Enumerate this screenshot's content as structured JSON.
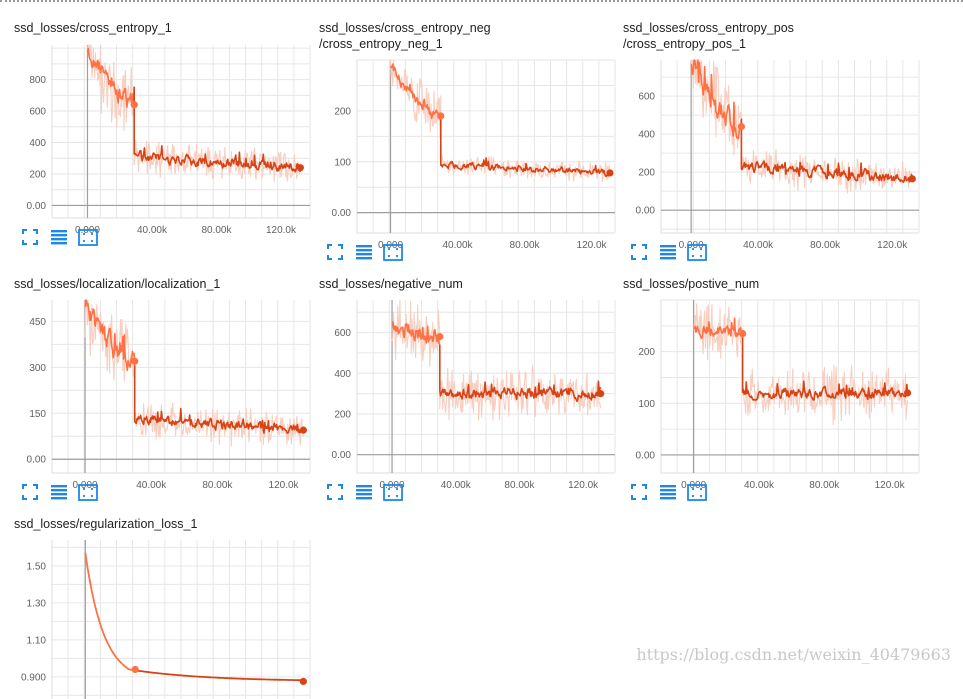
{
  "page": {
    "watermark": "https://blog.csdn.net/weixin_40479663"
  },
  "colors": {
    "raw": "#f7cfc0",
    "smooth_early": "#ff7043",
    "smooth_late": "#d84315",
    "grid": "#e6e6e6",
    "axis": "#9e9e9e",
    "icon": "#1e88e5"
  },
  "icons": [
    "expand-icon",
    "list-icon",
    "fit-domain-icon"
  ],
  "chart_data": [
    {
      "type": "line",
      "title_lines": [
        "ssd_losses/cross_entropy_1"
      ],
      "xlim": [
        -22000,
        138000
      ],
      "ylim": [
        -80,
        1020
      ],
      "x_ticks": [
        0,
        40000,
        80000,
        120000
      ],
      "x_tick_labels": [
        "0.000",
        "40.00k",
        "80.00k",
        "120.0k"
      ],
      "y_ticks": [
        0,
        200,
        400,
        600,
        800
      ],
      "y_tick_labels": [
        "0.00",
        "200",
        "400",
        "600",
        "800"
      ],
      "series": [
        {
          "name": "",
          "segments": [
            {
              "x0": 0,
              "x1": 29000,
              "start": 1000,
              "end": 650,
              "noise": 65,
              "raw_spread": 200
            },
            {
              "x0": 29000,
              "x1": 132000,
              "start": 310,
              "end": 240,
              "noise": 35,
              "raw_spread": 95
            }
          ]
        }
      ],
      "markers": [
        {
          "x": 29000,
          "y": 640
        },
        {
          "x": 132000,
          "y": 240
        }
      ]
    },
    {
      "type": "line",
      "title_lines": [
        "ssd_losses/cross_entropy_neg",
        "/cross_entropy_neg_1"
      ],
      "xlim": [
        -20000,
        134000
      ],
      "ylim": [
        -40,
        300
      ],
      "x_ticks": [
        0,
        40000,
        80000,
        120000
      ],
      "x_tick_labels": [
        "0.000",
        "40.00k",
        "80.00k",
        "120.0k"
      ],
      "y_ticks": [
        0,
        100,
        200
      ],
      "y_tick_labels": [
        "0.00",
        "100",
        "200"
      ],
      "series": [
        {
          "name": "",
          "segments": [
            {
              "x0": 0,
              "x1": 30000,
              "start": 290,
              "end": 190,
              "noise": 12,
              "raw_spread": 40
            },
            {
              "x0": 30000,
              "x1": 131000,
              "start": 95,
              "end": 78,
              "noise": 7,
              "raw_spread": 18
            }
          ]
        }
      ],
      "markers": [
        {
          "x": 30000,
          "y": 190
        },
        {
          "x": 131000,
          "y": 78
        }
      ]
    },
    {
      "type": "line",
      "title_lines": [
        "ssd_losses/cross_entropy_pos",
        "/cross_entropy_pos_1"
      ],
      "xlim": [
        -18000,
        136000
      ],
      "ylim": [
        -120,
        790
      ],
      "x_ticks": [
        0,
        40000,
        80000,
        120000
      ],
      "x_tick_labels": [
        "0.000",
        "40.00k",
        "80.00k",
        "120.0k"
      ],
      "y_ticks": [
        0,
        200,
        400,
        600
      ],
      "y_tick_labels": [
        "0.00",
        "200",
        "400",
        "600"
      ],
      "series": [
        {
          "name": "",
          "segments": [
            {
              "x0": 0,
              "x1": 30000,
              "start": 780,
              "end": 450,
              "noise": 70,
              "raw_spread": 180
            },
            {
              "x0": 30000,
              "x1": 132000,
              "start": 230,
              "end": 165,
              "noise": 30,
              "raw_spread": 80
            }
          ]
        }
      ],
      "markers": [
        {
          "x": 30000,
          "y": 440
        },
        {
          "x": 132000,
          "y": 165
        }
      ]
    },
    {
      "type": "line",
      "title_lines": [
        "ssd_losses/localization/localization_1"
      ],
      "xlim": [
        -20000,
        136000
      ],
      "ylim": [
        -45,
        520
      ],
      "x_ticks": [
        0,
        40000,
        80000,
        120000
      ],
      "x_tick_labels": [
        "0.000",
        "40.00k",
        "80.00k",
        "120.0k"
      ],
      "y_ticks": [
        0,
        150,
        300,
        450
      ],
      "y_tick_labels": [
        "0.00",
        "150",
        "300",
        "450"
      ],
      "series": [
        {
          "name": "",
          "segments": [
            {
              "x0": 0,
              "x1": 30000,
              "start": 500,
              "end": 320,
              "noise": 40,
              "raw_spread": 110
            },
            {
              "x0": 30000,
              "x1": 132000,
              "start": 135,
              "end": 95,
              "noise": 18,
              "raw_spread": 50
            }
          ]
        }
      ],
      "markers": [
        {
          "x": 30000,
          "y": 320
        },
        {
          "x": 132000,
          "y": 95
        }
      ]
    },
    {
      "type": "line",
      "title_lines": [
        "ssd_losses/negative_num"
      ],
      "xlim": [
        -22000,
        140000
      ],
      "ylim": [
        -90,
        760
      ],
      "x_ticks": [
        0,
        40000,
        80000,
        120000
      ],
      "x_tick_labels": [
        "0.000",
        "40.00k",
        "80.00k",
        "120.0k"
      ],
      "y_ticks": [
        0,
        200,
        400,
        600
      ],
      "y_tick_labels": [
        "0.00",
        "200",
        "400",
        "600"
      ],
      "series": [
        {
          "name": "",
          "segments": [
            {
              "x0": 0,
              "x1": 30000,
              "start": 640,
              "end": 580,
              "noise": 45,
              "raw_spread": 150
            },
            {
              "x0": 30000,
              "x1": 131000,
              "start": 300,
              "end": 300,
              "noise": 30,
              "raw_spread": 110
            }
          ]
        }
      ],
      "markers": [
        {
          "x": 30000,
          "y": 580
        },
        {
          "x": 131000,
          "y": 300
        }
      ]
    },
    {
      "type": "line",
      "title_lines": [
        "ssd_losses/postive_num"
      ],
      "xlim": [
        -20000,
        138000
      ],
      "ylim": [
        -35,
        300
      ],
      "x_ticks": [
        0,
        40000,
        80000,
        120000
      ],
      "x_tick_labels": [
        "0.000",
        "40.00k",
        "80.00k",
        "120.0k"
      ],
      "y_ticks": [
        0,
        100,
        200
      ],
      "y_tick_labels": [
        "0.00",
        "100",
        "200"
      ],
      "series": [
        {
          "name": "",
          "segments": [
            {
              "x0": 0,
              "x1": 30000,
              "start": 245,
              "end": 235,
              "noise": 14,
              "raw_spread": 50
            },
            {
              "x0": 30000,
              "x1": 131000,
              "start": 118,
              "end": 120,
              "noise": 11,
              "raw_spread": 45
            }
          ]
        }
      ],
      "markers": [
        {
          "x": 30000,
          "y": 235
        },
        {
          "x": 131000,
          "y": 120
        }
      ]
    },
    {
      "type": "line",
      "title_lines": [
        "ssd_losses/regularization_loss_1"
      ],
      "xlim": [
        -20000,
        135000
      ],
      "ylim": [
        0.78,
        1.64
      ],
      "x_ticks": [
        0,
        40000,
        80000,
        120000
      ],
      "x_tick_labels": [
        "",
        "",
        "",
        ""
      ],
      "y_ticks": [
        0.9,
        1.1,
        1.3,
        1.5
      ],
      "y_tick_labels": [
        "0.900",
        "1.10",
        "1.30",
        "1.50"
      ],
      "series": [
        {
          "name": "",
          "decay": {
            "x0": 0,
            "x1": 131000,
            "split": 30000,
            "start": 1.57,
            "asymptote": 0.875,
            "rate": 0.09,
            "late_drop": 0.06
          }
        }
      ],
      "markers": [
        {
          "x": 30000,
          "y": 0.94
        },
        {
          "x": 131000,
          "y": 0.875
        }
      ]
    }
  ]
}
